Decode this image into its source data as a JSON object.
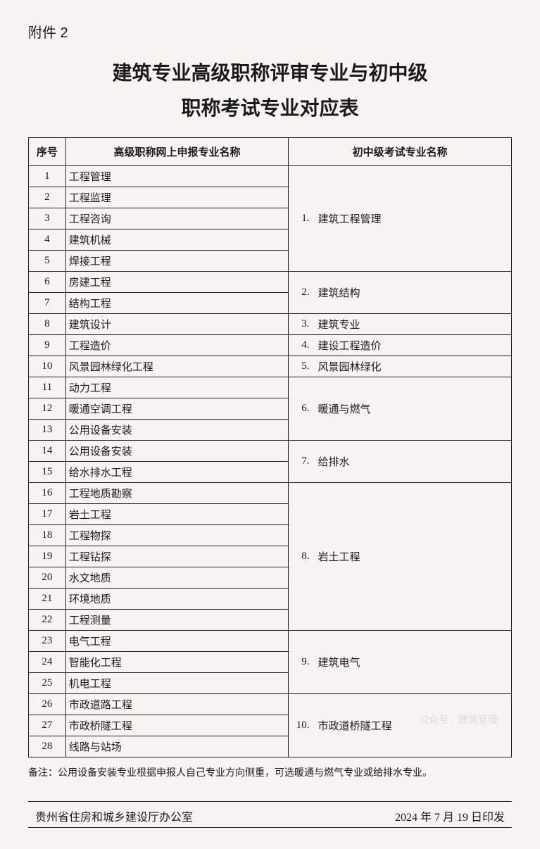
{
  "attachment_label": "附件 2",
  "title_line1": "建筑专业高级职称评审专业与初中级",
  "title_line2": "职称考试专业对应表",
  "columns": {
    "idx": "序号",
    "left": "高级职称网上申报专业名称",
    "right": "初中级考试专业名称"
  },
  "left_rows": [
    "工程管理",
    "工程监理",
    "工程咨询",
    "建筑机械",
    "焊接工程",
    "房建工程",
    "结构工程",
    "建筑设计",
    "工程造价",
    "风景园林绿化工程",
    "动力工程",
    "暖通空调工程",
    "公用设备安装",
    "公用设备安装",
    "给水排水工程",
    "工程地质勘察",
    "岩土工程",
    "工程物探",
    "工程钻探",
    "水文地质",
    "环境地质",
    "工程测量",
    "电气工程",
    "智能化工程",
    "机电工程",
    "市政道路工程",
    "市政桥隧工程",
    "线路与站场"
  ],
  "right_groups": [
    {
      "num": "1.",
      "name": "建筑工程管理",
      "span": 5
    },
    {
      "num": "2.",
      "name": "建筑结构",
      "span": 2
    },
    {
      "num": "3.",
      "name": "建筑专业",
      "span": 1
    },
    {
      "num": "4.",
      "name": "建设工程造价",
      "span": 1
    },
    {
      "num": "5.",
      "name": "风景园林绿化",
      "span": 1
    },
    {
      "num": "6.",
      "name": "暖通与燃气",
      "span": 3
    },
    {
      "num": "7.",
      "name": "给排水",
      "span": 2
    },
    {
      "num": "8.",
      "name": "岩土工程",
      "span": 7
    },
    {
      "num": "9.",
      "name": "建筑电气",
      "span": 3
    },
    {
      "num": "10.",
      "name": "市政道桥隧工程",
      "span": 3
    }
  ],
  "note": "备注：公用设备安装专业根据申报人自己专业方向侧重，可选暖通与燃气专业或给排水专业。",
  "footer_left": "贵州省住房和城乡建设厅办公室",
  "footer_right": "2024 年 7 月 19 日印发",
  "watermark": "公众号：建筑管理"
}
